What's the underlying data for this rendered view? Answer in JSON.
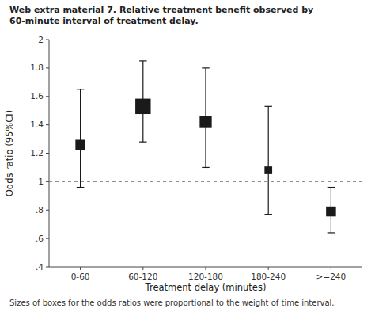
{
  "chart_data": {
    "type": "errorbar",
    "title": "Web extra material 7. Relative treatment benefit observed by 60-minute interval of treatment delay.",
    "xlabel": "Treatment delay (minutes)",
    "ylabel": "Odds ratio (95%CI)",
    "footnote": "Sizes of boxes for the odds ratios were proportional to the weight of time interval.",
    "categories": [
      "0-60",
      "60-120",
      "120-180",
      "180-240",
      ">=240"
    ],
    "values": [
      1.26,
      1.53,
      1.42,
      1.08,
      0.79
    ],
    "ci_lower": [
      0.96,
      1.28,
      1.1,
      0.77,
      0.64
    ],
    "ci_upper": [
      1.65,
      1.85,
      1.8,
      1.53,
      0.96
    ],
    "box_sizes": [
      9,
      14,
      11,
      7,
      9
    ],
    "reference_line": 1.0,
    "ylim": [
      0.4,
      2.0
    ],
    "yticks": [
      {
        "value": 0.4,
        "label": ".4"
      },
      {
        "value": 0.6,
        "label": ".6"
      },
      {
        "value": 0.8,
        "label": ".8"
      },
      1,
      1.2,
      1.4,
      1.6,
      1.8,
      2
    ],
    "color": "#1a1a1a",
    "marker": "square",
    "grid": false
  }
}
